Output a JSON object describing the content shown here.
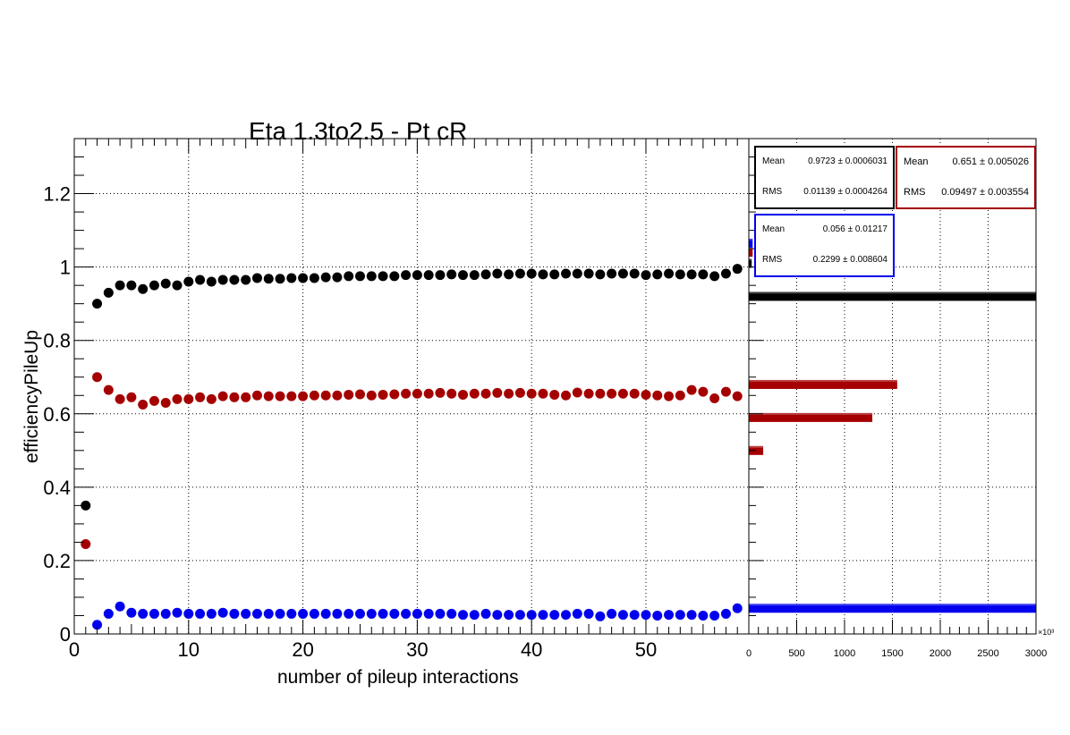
{
  "chart_data": [
    {
      "type": "scatter",
      "title": "Eta 1.3to2.5 - Pt cR",
      "xlabel": "number of pileup interactions",
      "ylabel": "efficiencyPileUp",
      "xlim": [
        0,
        59
      ],
      "ylim": [
        0,
        1.35
      ],
      "x_ticks": [
        "0",
        "10",
        "20",
        "30",
        "40",
        "50"
      ],
      "y_ticks": [
        "0",
        "0.2",
        "0.4",
        "0.6",
        "0.8",
        "1",
        "1.2"
      ],
      "grid": true,
      "x": [
        1,
        2,
        3,
        4,
        5,
        6,
        7,
        8,
        9,
        10,
        11,
        12,
        13,
        14,
        15,
        16,
        17,
        18,
        19,
        20,
        21,
        22,
        23,
        24,
        25,
        26,
        27,
        28,
        29,
        30,
        31,
        32,
        33,
        34,
        35,
        36,
        37,
        38,
        39,
        40,
        41,
        42,
        43,
        44,
        45,
        46,
        47,
        48,
        49,
        50,
        51,
        52,
        53,
        54,
        55,
        56,
        57,
        58
      ],
      "series": [
        {
          "color": "#000000",
          "values": [
            0.35,
            0.9,
            0.93,
            0.95,
            0.95,
            0.94,
            0.95,
            0.955,
            0.95,
            0.96,
            0.965,
            0.96,
            0.965,
            0.965,
            0.965,
            0.97,
            0.968,
            0.968,
            0.97,
            0.97,
            0.97,
            0.972,
            0.972,
            0.975,
            0.975,
            0.975,
            0.975,
            0.975,
            0.978,
            0.978,
            0.978,
            0.978,
            0.98,
            0.978,
            0.978,
            0.98,
            0.982,
            0.98,
            0.982,
            0.982,
            0.98,
            0.98,
            0.982,
            0.982,
            0.982,
            0.98,
            0.982,
            0.982,
            0.982,
            0.978,
            0.98,
            0.982,
            0.98,
            0.98,
            0.98,
            0.975,
            0.982,
            0.995
          ]
        },
        {
          "color": "#a50000",
          "values": [
            0.245,
            0.7,
            0.665,
            0.64,
            0.645,
            0.625,
            0.635,
            0.63,
            0.64,
            0.64,
            0.645,
            0.64,
            0.648,
            0.645,
            0.645,
            0.65,
            0.648,
            0.648,
            0.648,
            0.648,
            0.65,
            0.65,
            0.65,
            0.652,
            0.653,
            0.65,
            0.652,
            0.653,
            0.655,
            0.655,
            0.655,
            0.657,
            0.655,
            0.652,
            0.655,
            0.655,
            0.657,
            0.655,
            0.657,
            0.655,
            0.655,
            0.652,
            0.65,
            0.658,
            0.655,
            0.655,
            0.655,
            0.655,
            0.655,
            0.652,
            0.65,
            0.648,
            0.65,
            0.665,
            0.66,
            0.642,
            0.66,
            0.648
          ]
        },
        {
          "color": "#0000ee",
          "values": [
            null,
            0.025,
            0.055,
            0.075,
            0.058,
            0.055,
            0.055,
            0.055,
            0.058,
            0.055,
            0.055,
            0.055,
            0.058,
            0.055,
            0.055,
            0.055,
            0.055,
            0.055,
            0.055,
            0.055,
            0.055,
            0.055,
            0.055,
            0.055,
            0.055,
            0.055,
            0.055,
            0.055,
            0.055,
            0.055,
            0.055,
            0.055,
            0.055,
            0.052,
            0.052,
            0.055,
            0.052,
            0.052,
            0.052,
            0.052,
            0.052,
            0.052,
            0.052,
            0.055,
            0.055,
            0.048,
            0.055,
            0.052,
            0.052,
            0.052,
            0.05,
            0.052,
            0.052,
            0.052,
            0.05,
            0.05,
            0.055,
            0.07
          ]
        }
      ]
    },
    {
      "type": "bar",
      "orientation": "horizontal",
      "x_ticks": [
        "0",
        "500",
        "1000",
        "1500",
        "2000",
        "2500",
        "3000"
      ],
      "x_multiplier": "×10³",
      "xlim": [
        0,
        3000
      ],
      "ylim": [
        0,
        1.35
      ],
      "grid": true,
      "series": [
        {
          "color": "#000000",
          "bars": [
            {
              "y": 0.92,
              "value": 3000
            },
            {
              "y": 1.01,
              "value": 30
            }
          ]
        },
        {
          "color": "#a50000",
          "bars": [
            {
              "y": 0.68,
              "value": 1550
            },
            {
              "y": 0.59,
              "value": 1290
            },
            {
              "y": 0.5,
              "value": 150
            },
            {
              "y": 1.04,
              "value": 40
            }
          ]
        },
        {
          "color": "#0000ee",
          "bars": [
            {
              "y": 0.07,
              "value": 3000
            },
            {
              "y": 1.065,
              "value": 40
            }
          ]
        }
      ],
      "stat_boxes": [
        {
          "color": "#000000",
          "mean_label": "Mean",
          "mean_value": "0.9723 ± 0.0006031",
          "rms_label": "RMS",
          "rms_value": "0.01139 ± 0.0004264"
        },
        {
          "color": "#a50000",
          "mean_label": "Mean",
          "mean_value": "0.651 ± 0.005026",
          "rms_label": "RMS",
          "rms_value": "0.09497 ± 0.003554"
        },
        {
          "color": "#0000ee",
          "mean_label": "Mean",
          "mean_value": "0.056 ± 0.01217",
          "rms_label": "RMS",
          "rms_value": "0.2299 ± 0.008604"
        }
      ]
    }
  ]
}
